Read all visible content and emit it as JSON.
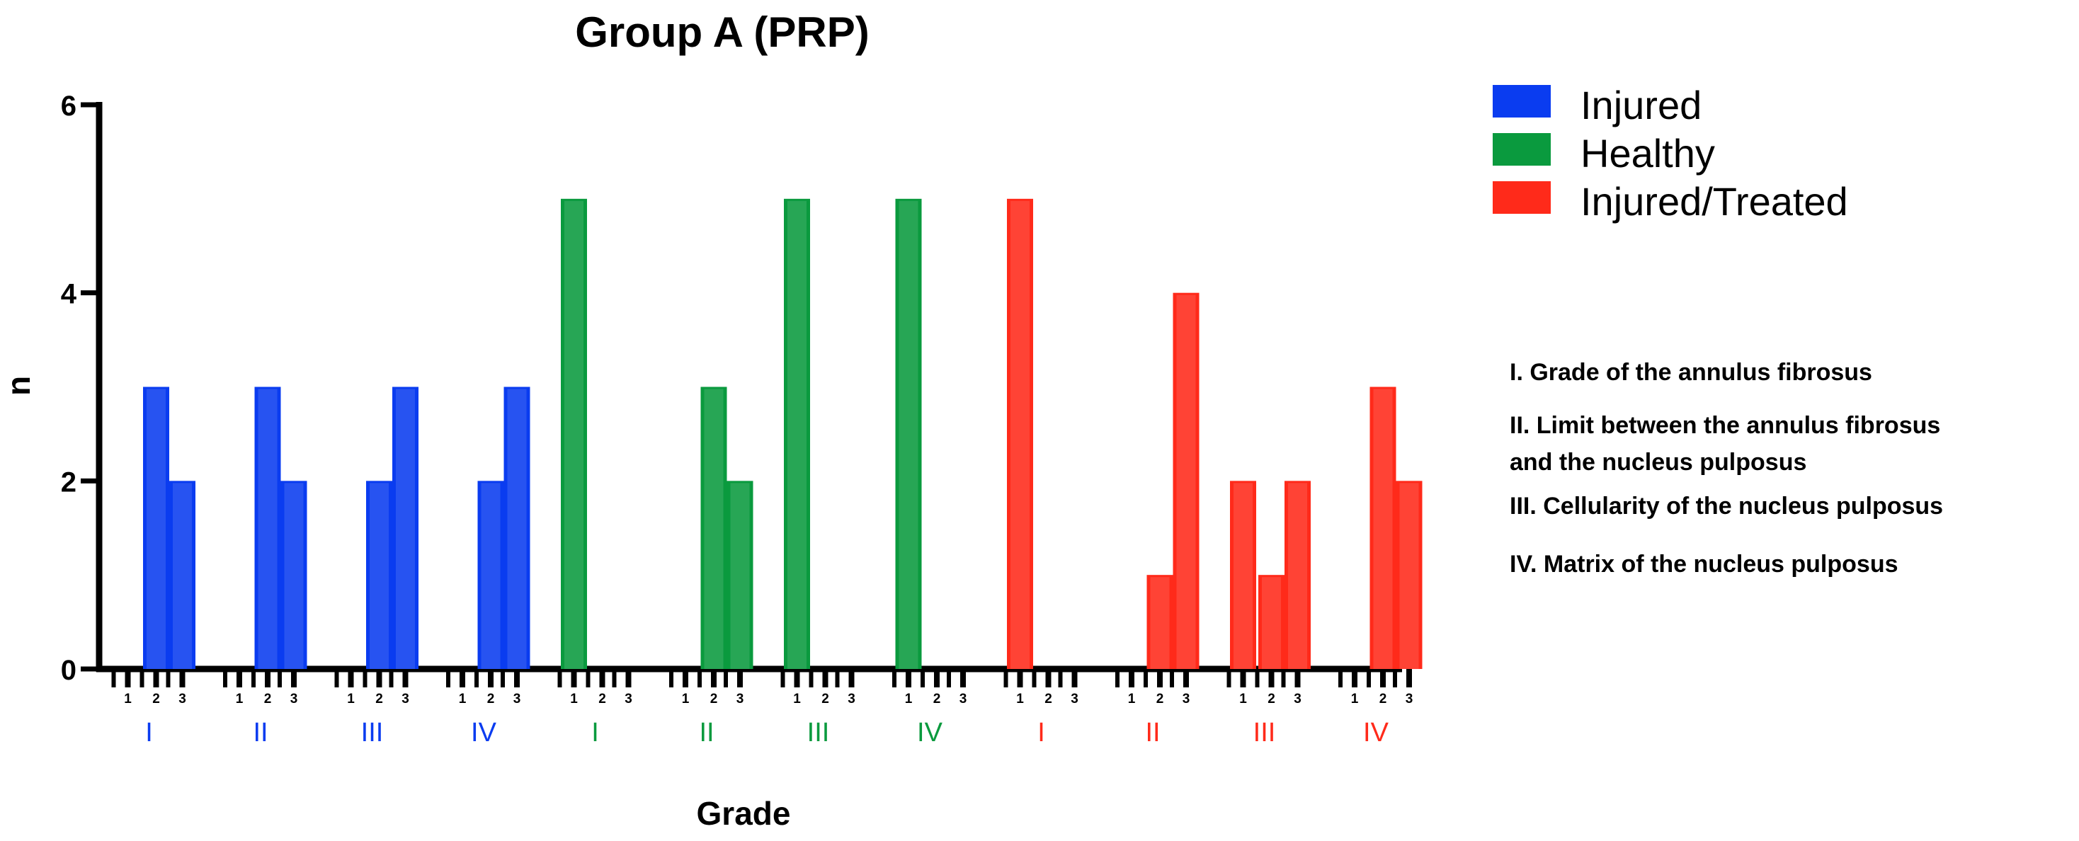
{
  "chart_data": {
    "type": "bar",
    "title": "Group A (PRP)",
    "xlabel": "Grade",
    "ylabel": "n",
    "ylim": [
      0,
      6
    ],
    "yticks": [
      0,
      2,
      4,
      6
    ],
    "grades": [
      "1",
      "2",
      "3"
    ],
    "series": [
      {
        "name": "Injured",
        "color": "#0a3cf0",
        "groups": [
          {
            "label": "I",
            "values": [
              0,
              3,
              2
            ]
          },
          {
            "label": "II",
            "values": [
              0,
              3,
              2
            ]
          },
          {
            "label": "III",
            "values": [
              0,
              2,
              3
            ]
          },
          {
            "label": "IV",
            "values": [
              0,
              2,
              3
            ]
          }
        ]
      },
      {
        "name": "Healthy",
        "color": "#0a9a3e",
        "groups": [
          {
            "label": "I",
            "values": [
              5,
              0,
              0
            ]
          },
          {
            "label": "II",
            "values": [
              0,
              3,
              2
            ]
          },
          {
            "label": "III",
            "values": [
              5,
              0,
              0
            ]
          },
          {
            "label": "IV",
            "values": [
              5,
              0,
              0
            ]
          }
        ]
      },
      {
        "name": "Injured/Treated",
        "color": "#ff2a1a",
        "groups": [
          {
            "label": "I",
            "values": [
              5,
              0,
              0
            ]
          },
          {
            "label": "II",
            "values": [
              0,
              1,
              4
            ]
          },
          {
            "label": "III",
            "values": [
              2,
              1,
              2
            ]
          },
          {
            "label": "IV",
            "values": [
              0,
              3,
              2
            ]
          }
        ]
      }
    ],
    "legend_position": "top-right",
    "grid": false
  },
  "notes": [
    [
      "I. Grade of the annulus fibrosus"
    ],
    [
      "II. Limit between the annulus fibrosus",
      "and the nucleus pulposus"
    ],
    [
      "III. Cellularity of the nucleus pulposus"
    ],
    [
      "IV. Matrix of the nucleus pulposus"
    ]
  ]
}
